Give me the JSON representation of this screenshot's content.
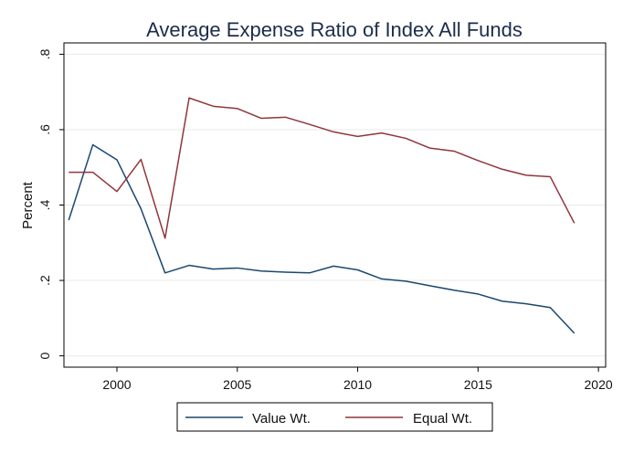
{
  "chart_data": {
    "type": "line",
    "title": "Average Expense Ratio of Index All Funds",
    "xlabel": "",
    "ylabel": "Percent",
    "xlim": [
      1997.8,
      2020.3
    ],
    "ylim": [
      -0.03,
      0.83
    ],
    "x_ticks": [
      2000,
      2005,
      2010,
      2015,
      2020
    ],
    "x_tick_labels": [
      "2000",
      "2005",
      "2010",
      "2015",
      "2020"
    ],
    "y_ticks": [
      0,
      0.2,
      0.4,
      0.6,
      0.8
    ],
    "y_tick_labels": [
      "0",
      ".2",
      ".4",
      ".6",
      ".8"
    ],
    "grid": true,
    "legend_position": "bottom",
    "x": [
      1998,
      1999,
      2000,
      2001,
      2002,
      2003,
      2004,
      2005,
      2006,
      2007,
      2008,
      2009,
      2010,
      2011,
      2012,
      2013,
      2014,
      2015,
      2016,
      2017,
      2018,
      2019
    ],
    "series": [
      {
        "name": "Value Wt.",
        "color": "#1a476f",
        "values": [
          0.36,
          0.56,
          0.52,
          0.39,
          0.22,
          0.24,
          0.23,
          0.233,
          0.225,
          0.222,
          0.22,
          0.238,
          0.228,
          0.204,
          0.198,
          0.186,
          0.174,
          0.164,
          0.145,
          0.138,
          0.128,
          0.06
        ]
      },
      {
        "name": "Equal Wt.",
        "color": "#90353b",
        "values": [
          0.487,
          0.487,
          0.436,
          0.521,
          0.312,
          0.684,
          0.662,
          0.656,
          0.63,
          0.633,
          0.614,
          0.594,
          0.582,
          0.591,
          0.577,
          0.551,
          0.543,
          0.518,
          0.495,
          0.479,
          0.475,
          0.352
        ]
      }
    ]
  }
}
